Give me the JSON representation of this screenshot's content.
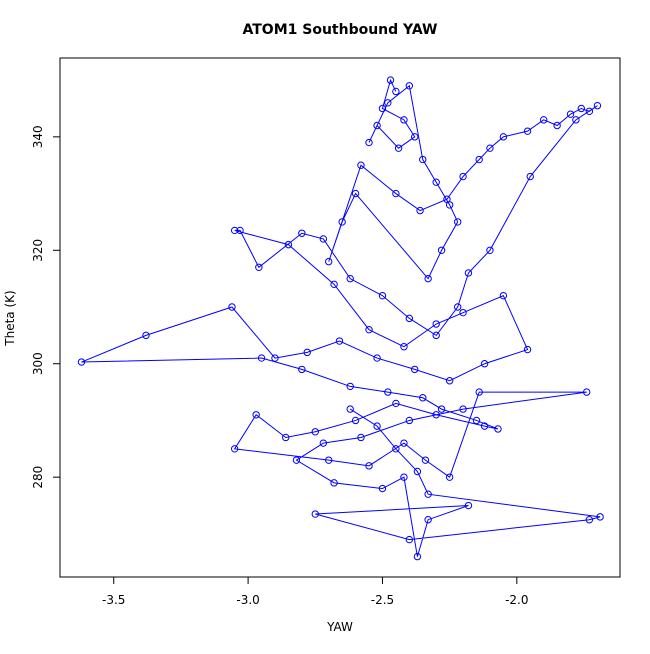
{
  "chart_data": {
    "type": "line",
    "title": "ATOM1 Southbound YAW",
    "x_label": "YAW",
    "y_label": "Theta (K)",
    "series": [
      {
        "color": "#0000ff",
        "marker": "circle",
        "x": [
          -2.45,
          -2.47,
          -2.5,
          -2.42,
          -2.38,
          -2.44,
          -2.52,
          -2.55,
          -2.48,
          -2.4,
          -2.35,
          -2.3,
          -2.25,
          -2.22,
          -2.28,
          -2.33,
          -2.6,
          -2.65,
          -2.7,
          -2.58,
          -2.45,
          -2.36,
          -2.26,
          -2.2,
          -2.14,
          -2.1,
          -2.05,
          -1.96,
          -1.9,
          -1.85,
          -1.8,
          -1.76,
          -1.73,
          -1.7,
          -1.78,
          -1.95,
          -2.1,
          -2.18,
          -2.22,
          -2.3,
          -2.4,
          -2.5,
          -2.62,
          -2.72,
          -2.8,
          -2.96,
          -3.03,
          -3.05,
          -2.85,
          -2.68,
          -2.55,
          -2.42,
          -2.3,
          -2.2,
          -2.05,
          -1.96,
          -2.12,
          -2.25,
          -2.38,
          -2.52,
          -2.66,
          -2.78,
          -2.9,
          -3.06,
          -3.38,
          -3.62,
          -2.95,
          -2.8,
          -2.62,
          -2.48,
          -2.35,
          -2.28,
          -2.15,
          -2.07,
          -2.12,
          -2.3,
          -2.45,
          -2.6,
          -2.75,
          -2.86,
          -2.97,
          -3.05,
          -2.7,
          -2.55,
          -2.42,
          -2.34,
          -2.25,
          -2.14,
          -1.74,
          -2.2,
          -2.4,
          -2.58,
          -2.72,
          -2.82,
          -2.68,
          -2.5,
          -2.42,
          -2.37,
          -2.33,
          -2.18,
          -2.75,
          -2.4,
          -1.73,
          -1.69,
          -2.33,
          -2.37,
          -2.45,
          -2.52,
          -2.62
        ],
        "values": [
          348,
          350,
          345,
          343,
          340,
          338,
          342,
          339,
          346,
          349,
          336,
          332,
          328,
          325,
          320,
          315,
          330,
          325,
          318,
          335,
          330,
          327,
          329,
          333,
          336,
          338,
          340,
          341,
          343,
          342,
          344,
          345,
          344.5,
          345.5,
          343,
          333,
          320,
          316,
          310,
          305,
          308,
          312,
          315,
          322,
          323,
          317,
          323.5,
          323.5,
          321,
          314,
          306,
          303,
          307,
          309,
          312,
          302.5,
          300,
          297,
          299,
          301,
          304,
          302,
          301,
          310,
          305,
          300.3,
          301,
          299,
          296,
          295,
          294,
          292,
          290,
          288.5,
          289,
          291,
          293,
          290,
          288,
          287,
          291,
          285,
          283,
          282,
          286,
          283,
          280,
          295,
          295,
          292,
          290,
          287,
          286,
          283,
          279,
          278,
          280,
          266,
          272.5,
          275,
          273.5,
          269,
          272.5,
          273,
          277,
          281,
          285,
          289,
          292
        ]
      }
    ],
    "xlim": [
      -3.7,
      -1.616
    ],
    "ylim": [
      262.4,
      353.9
    ],
    "xticks": [
      -3.5,
      {
        "value": -3,
        "label": "-3.0"
      },
      -2.5,
      {
        "value": -2,
        "label": "-2.0"
      }
    ],
    "yticks": [
      280,
      300,
      320,
      340
    ]
  }
}
